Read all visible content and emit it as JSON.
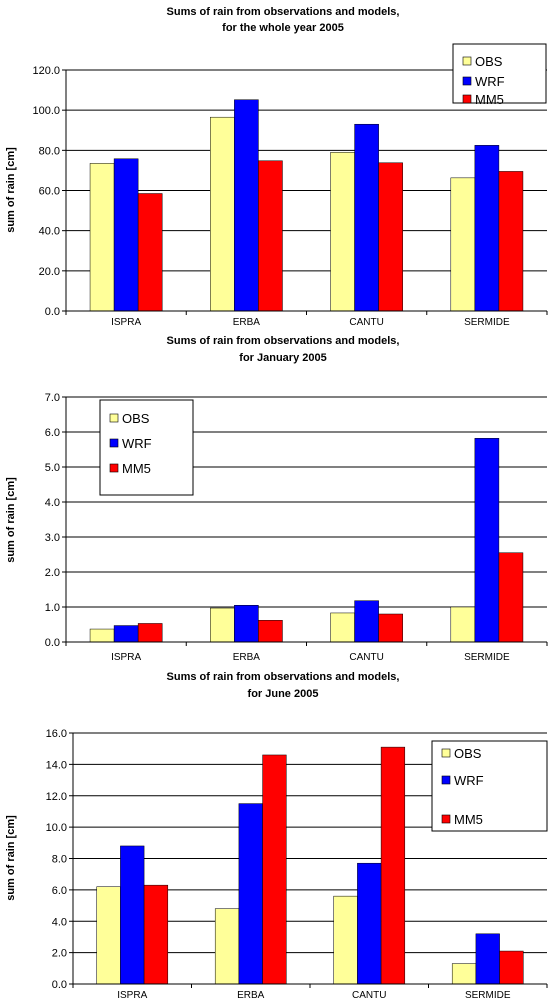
{
  "chart_data": [
    {
      "type": "bar",
      "title": "Sums of rain from observations and models,",
      "subtitle": "for the whole year 2005",
      "xlabel": "",
      "ylabel": "sum of rain [cm]",
      "categories": [
        "ISPRA",
        "ERBA",
        "CANTU",
        "SERMIDE"
      ],
      "series": [
        {
          "name": "OBS",
          "color": "#ffff99",
          "values": [
            73.5,
            96.5,
            79.0,
            66.3
          ]
        },
        {
          "name": "WRF",
          "color": "#0000ff",
          "values": [
            75.8,
            105.2,
            93.0,
            82.5
          ]
        },
        {
          "name": "MM5",
          "color": "#ff0000",
          "values": [
            58.5,
            74.8,
            73.8,
            69.5
          ]
        }
      ],
      "ylim": [
        0,
        120
      ],
      "yticks": [
        "0.0",
        "20.0",
        "40.0",
        "60.0",
        "80.0",
        "100.0",
        "120.0"
      ],
      "grid": true,
      "legend": "top-right"
    },
    {
      "type": "bar",
      "title": "Sums of rain from observations and models,",
      "subtitle": "for January 2005",
      "xlabel": "",
      "ylabel": "sum of rain [cm]",
      "categories": [
        "ISPRA",
        "ERBA",
        "CANTU",
        "SERMIDE"
      ],
      "series": [
        {
          "name": "OBS",
          "color": "#ffff99",
          "values": [
            0.37,
            0.97,
            0.83,
            1.0
          ]
        },
        {
          "name": "WRF",
          "color": "#0000ff",
          "values": [
            0.47,
            1.05,
            1.18,
            5.82
          ]
        },
        {
          "name": "MM5",
          "color": "#ff0000",
          "values": [
            0.53,
            0.62,
            0.8,
            2.55
          ]
        }
      ],
      "ylim": [
        0,
        7
      ],
      "yticks": [
        "0.0",
        "1.0",
        "2.0",
        "3.0",
        "4.0",
        "5.0",
        "6.0",
        "7.0"
      ],
      "grid": true,
      "legend": "top-left"
    },
    {
      "type": "bar",
      "title": "Sums of rain from observations and models,",
      "subtitle": "for June 2005",
      "xlabel": "",
      "ylabel": "sum of rain [cm]",
      "categories": [
        "ISPRA",
        "ERBA",
        "CANTU",
        "SERMIDE"
      ],
      "series": [
        {
          "name": "OBS",
          "color": "#ffff99",
          "values": [
            6.2,
            4.8,
            5.6,
            1.3
          ]
        },
        {
          "name": "WRF",
          "color": "#0000ff",
          "values": [
            8.8,
            11.5,
            7.7,
            3.2
          ]
        },
        {
          "name": "MM5",
          "color": "#ff0000",
          "values": [
            6.3,
            14.6,
            15.1,
            2.1
          ]
        }
      ],
      "ylim": [
        0,
        16
      ],
      "yticks": [
        "0.0",
        "2.0",
        "4.0",
        "6.0",
        "8.0",
        "10.0",
        "12.0",
        "14.0",
        "16.0"
      ],
      "grid": true,
      "legend": "top-right"
    }
  ]
}
